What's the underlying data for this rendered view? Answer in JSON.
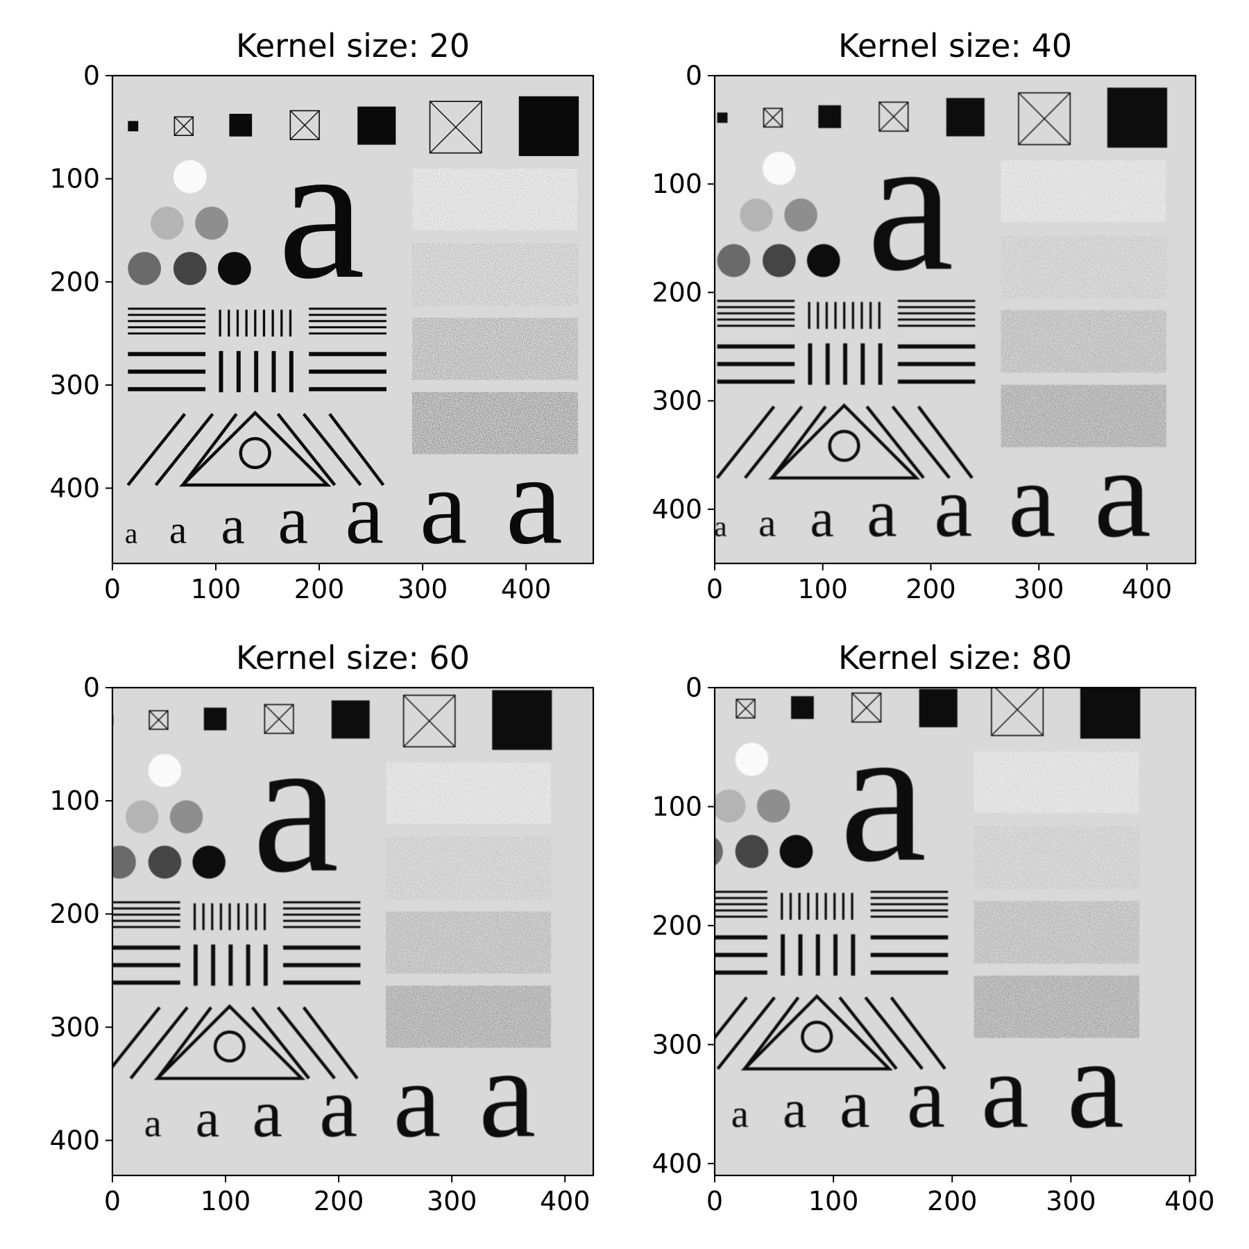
{
  "figure": {
    "panels": [
      {
        "title": "Kernel size: 20",
        "kernel_size": 20,
        "xlim": [
          0,
          465
        ],
        "ylim": [
          0,
          473
        ],
        "xticks": [
          0,
          100,
          200,
          300,
          400
        ],
        "yticks": [
          0,
          100,
          200,
          300,
          400
        ],
        "xtick_labels": [
          "0",
          "100",
          "200",
          "300",
          "400"
        ],
        "ytick_labels": [
          "0",
          "100",
          "200",
          "300",
          "400"
        ]
      },
      {
        "title": "Kernel size: 40",
        "kernel_size": 40,
        "xlim": [
          0,
          445
        ],
        "ylim": [
          0,
          450
        ],
        "xticks": [
          0,
          100,
          200,
          300,
          400
        ],
        "yticks": [
          0,
          100,
          200,
          300,
          400
        ],
        "xtick_labels": [
          "0",
          "100",
          "200",
          "300",
          "400"
        ],
        "ytick_labels": [
          "0",
          "100",
          "200",
          "300",
          "400"
        ]
      },
      {
        "title": "Kernel size: 60",
        "kernel_size": 60,
        "xlim": [
          0,
          425
        ],
        "ylim": [
          0,
          431
        ],
        "xticks": [
          0,
          100,
          200,
          300,
          400
        ],
        "yticks": [
          0,
          100,
          200,
          300,
          400
        ],
        "xtick_labels": [
          "0",
          "100",
          "200",
          "300",
          "400"
        ],
        "ytick_labels": [
          "0",
          "100",
          "200",
          "300",
          "400"
        ]
      },
      {
        "title": "Kernel size: 80",
        "kernel_size": 80,
        "xlim": [
          0,
          405
        ],
        "ylim": [
          0,
          410
        ],
        "xticks": [
          0,
          100,
          200,
          300,
          400
        ],
        "yticks": [
          0,
          100,
          200,
          300,
          400
        ],
        "xtick_labels": [
          "0",
          "100",
          "200",
          "300",
          "400"
        ],
        "ytick_labels": [
          "0",
          "100",
          "200",
          "300",
          "400"
        ]
      }
    ],
    "colors": {
      "background": "#d9d9d9",
      "ink": "#0a0a0a",
      "frame": "#000000"
    },
    "test_pattern_letter": "a"
  }
}
